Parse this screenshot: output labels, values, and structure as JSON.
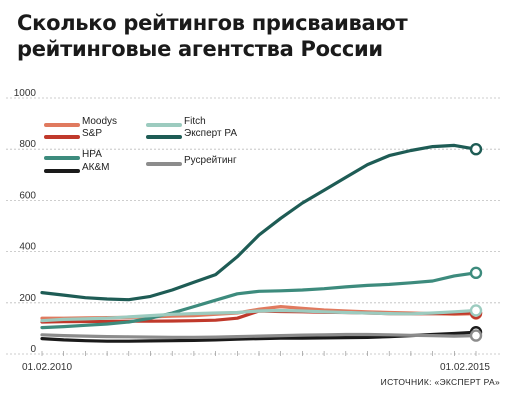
{
  "title": "Сколько рейтингов присваивают рейтинговые агентства России",
  "source": "ИСТОЧНИК: «ЭКСПЕРТ РА»",
  "chart_data": {
    "type": "line",
    "title": "Сколько рейтингов присваивают рейтинговые агентства России",
    "xlabel": "",
    "ylabel": "",
    "ylim": [
      0,
      1000
    ],
    "yticks": [
      "0",
      "200",
      "400",
      "600",
      "800",
      "1000"
    ],
    "xtick_labels": [
      "01.02.2010",
      "01.02.2015"
    ],
    "x": [
      "2010-02",
      "2010-05",
      "2010-08",
      "2010-11",
      "2011-02",
      "2011-05",
      "2011-08",
      "2011-11",
      "2012-02",
      "2012-05",
      "2012-08",
      "2012-11",
      "2013-02",
      "2013-05",
      "2013-08",
      "2013-11",
      "2014-02",
      "2014-05",
      "2014-08",
      "2014-11",
      "2015-02"
    ],
    "grid": true,
    "legend_position": "top-left",
    "series": [
      {
        "name": "Moodys",
        "color": "#e07a5f",
        "values": [
          140,
          140,
          141,
          142,
          143,
          145,
          148,
          150,
          155,
          160,
          175,
          185,
          178,
          172,
          168,
          165,
          162,
          160,
          158,
          155,
          158
        ]
      },
      {
        "name": "S&P",
        "color": "#c0392b",
        "values": [
          125,
          126,
          127,
          127,
          128,
          128,
          129,
          130,
          132,
          140,
          168,
          166,
          165,
          163,
          162,
          160,
          158,
          157,
          158,
          159,
          160
        ]
      },
      {
        "name": "НРА",
        "color": "#3d8b7d",
        "values": [
          103,
          107,
          112,
          117,
          125,
          140,
          160,
          185,
          210,
          235,
          245,
          247,
          250,
          255,
          262,
          268,
          272,
          278,
          285,
          305,
          317
        ]
      },
      {
        "name": "АК&М",
        "color": "#1a1a1a",
        "values": [
          60,
          55,
          52,
          50,
          50,
          51,
          52,
          53,
          55,
          58,
          60,
          62,
          62,
          63,
          64,
          65,
          68,
          72,
          76,
          80,
          85
        ]
      },
      {
        "name": "Fitch",
        "color": "#9ccbbf",
        "values": [
          130,
          135,
          137,
          140,
          145,
          150,
          155,
          158,
          160,
          162,
          168,
          170,
          168,
          165,
          162,
          160,
          158,
          157,
          160,
          165,
          170
        ]
      },
      {
        "name": "Эксперт РА",
        "color": "#1e5c55",
        "values": [
          240,
          230,
          220,
          215,
          212,
          225,
          250,
          280,
          310,
          380,
          465,
          530,
          590,
          640,
          690,
          740,
          775,
          795,
          810,
          815,
          800
        ]
      },
      {
        "name": "Русрейтинг",
        "color": "#8c8c8c",
        "values": [
          75,
          72,
          70,
          68,
          67,
          66,
          65,
          65,
          66,
          68,
          70,
          72,
          74,
          75,
          76,
          76,
          75,
          73,
          72,
          70,
          72
        ]
      }
    ]
  }
}
